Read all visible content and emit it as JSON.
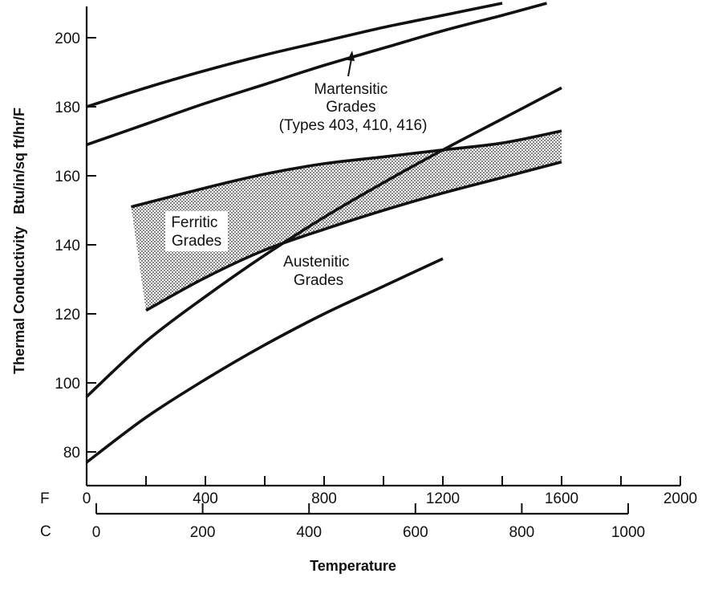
{
  "chart_data": {
    "type": "line",
    "title": "",
    "xlabel": "Temperature",
    "ylabel": "Thermal Conductivity   Btu/in/sq ft/hr/F",
    "x_unit_f": "F",
    "x_unit_c": "C",
    "xlim_f": [
      0,
      2000
    ],
    "xticks_f": [
      0,
      400,
      800,
      1200,
      1600,
      2000
    ],
    "xlim_c": [
      0,
      1000
    ],
    "xticks_c": [
      0,
      200,
      400,
      600,
      800,
      1000
    ],
    "ylim": [
      70,
      210
    ],
    "yticks": [
      80,
      100,
      120,
      140,
      160,
      180,
      200
    ],
    "grid": false,
    "series": [
      {
        "x": [
          0,
          200,
          400,
          600,
          800,
          1000,
          1200,
          1400
        ],
        "y": [
          180,
          185.5,
          190.5,
          195,
          199,
          203,
          206.5,
          210
        ]
      },
      {
        "x": [
          0,
          200,
          400,
          600,
          800,
          1000,
          1200,
          1400,
          1550
        ],
        "y": [
          169,
          175,
          181,
          186.5,
          192,
          197,
          202,
          206.5,
          210
        ]
      },
      {
        "x": [
          0,
          200,
          400,
          600,
          800,
          1000,
          1200,
          1400,
          1600
        ],
        "y": [
          96,
          112,
          125,
          137,
          148,
          158,
          167.5,
          176.5,
          185.5
        ]
      },
      {
        "x": [
          0,
          200,
          400,
          600,
          800,
          1000,
          1200
        ],
        "y": [
          77,
          90,
          101,
          111,
          120,
          128,
          136
        ]
      },
      {
        "x": [
          150,
          400,
          600,
          800,
          1000,
          1200,
          1400,
          1600
        ],
        "y": [
          151,
          156.5,
          160.5,
          163.5,
          165.5,
          167.5,
          169.5,
          173
        ]
      },
      {
        "x": [
          200,
          400,
          600,
          800,
          1000,
          1200,
          1400,
          1600
        ],
        "y": [
          121,
          130.5,
          138.5,
          144.5,
          150,
          155,
          159.5,
          164
        ]
      }
    ],
    "annotations": [
      {
        "lines": [
          "Martensitic",
          "Grades",
          "(Types 403, 410, 416)"
        ]
      },
      {
        "lines": [
          "Ferritic",
          "Grades"
        ]
      },
      {
        "lines": [
          "Austenitic",
          "Grades"
        ]
      }
    ]
  }
}
